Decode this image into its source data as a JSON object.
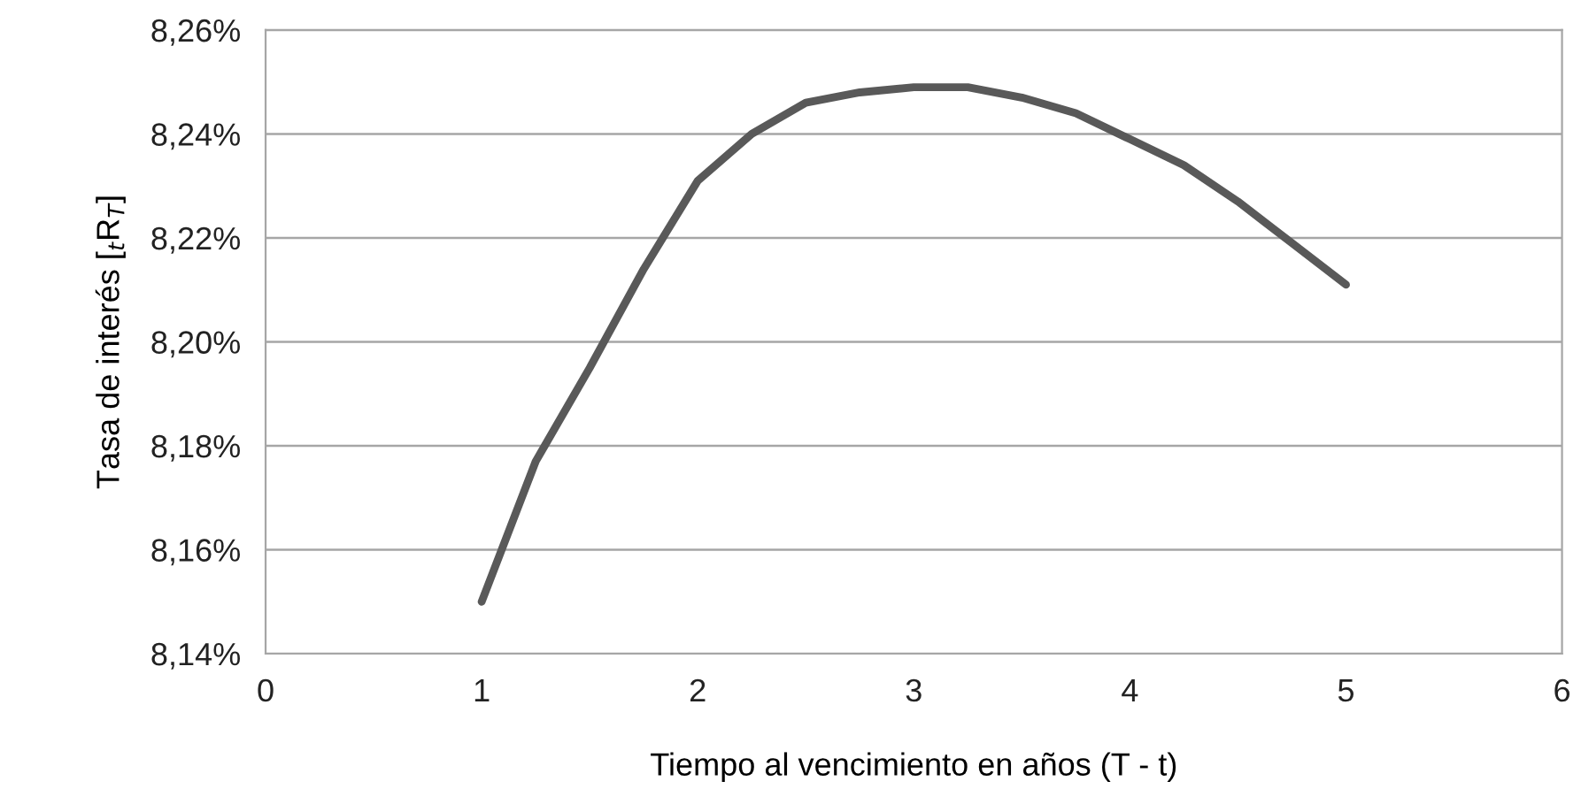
{
  "chart_data": {
    "type": "line",
    "xlabel": "Tiempo al vencimiento en años (T - t)",
    "ylabel": "Tasa de interés [$_{t}$R$_{T}$]",
    "series": [
      {
        "color": "#595959",
        "x": [
          1,
          1.25,
          1.5,
          1.75,
          2,
          2.25,
          2.5,
          2.75,
          3,
          3.25,
          3.5,
          3.75,
          4,
          4.25,
          4.5,
          4.75,
          5
        ],
        "values": [
          8.15,
          8.177,
          8.195,
          8.214,
          8.231,
          8.24,
          8.246,
          8.248,
          8.249,
          8.249,
          8.247,
          8.244,
          8.239,
          8.234,
          8.227,
          8.219,
          8.211
        ]
      }
    ],
    "xlim": [
      0,
      6
    ],
    "xticks": [
      0,
      1,
      2,
      3,
      4,
      5,
      6
    ],
    "ylim": [
      8.14,
      8.26
    ],
    "yticks": [
      {
        "value": 8.14,
        "label": "8,14%"
      },
      {
        "value": 8.16,
        "label": "8,16%"
      },
      {
        "value": 8.18,
        "label": "8,18%"
      },
      {
        "value": 8.2,
        "label": "8,20%"
      },
      {
        "value": 8.22,
        "label": "8,22%"
      },
      {
        "value": 8.24,
        "label": "8,24%"
      },
      {
        "value": 8.26,
        "label": "8,26%"
      }
    ],
    "grid": "y",
    "marker": "none",
    "line_style": "solid",
    "legend": false
  }
}
